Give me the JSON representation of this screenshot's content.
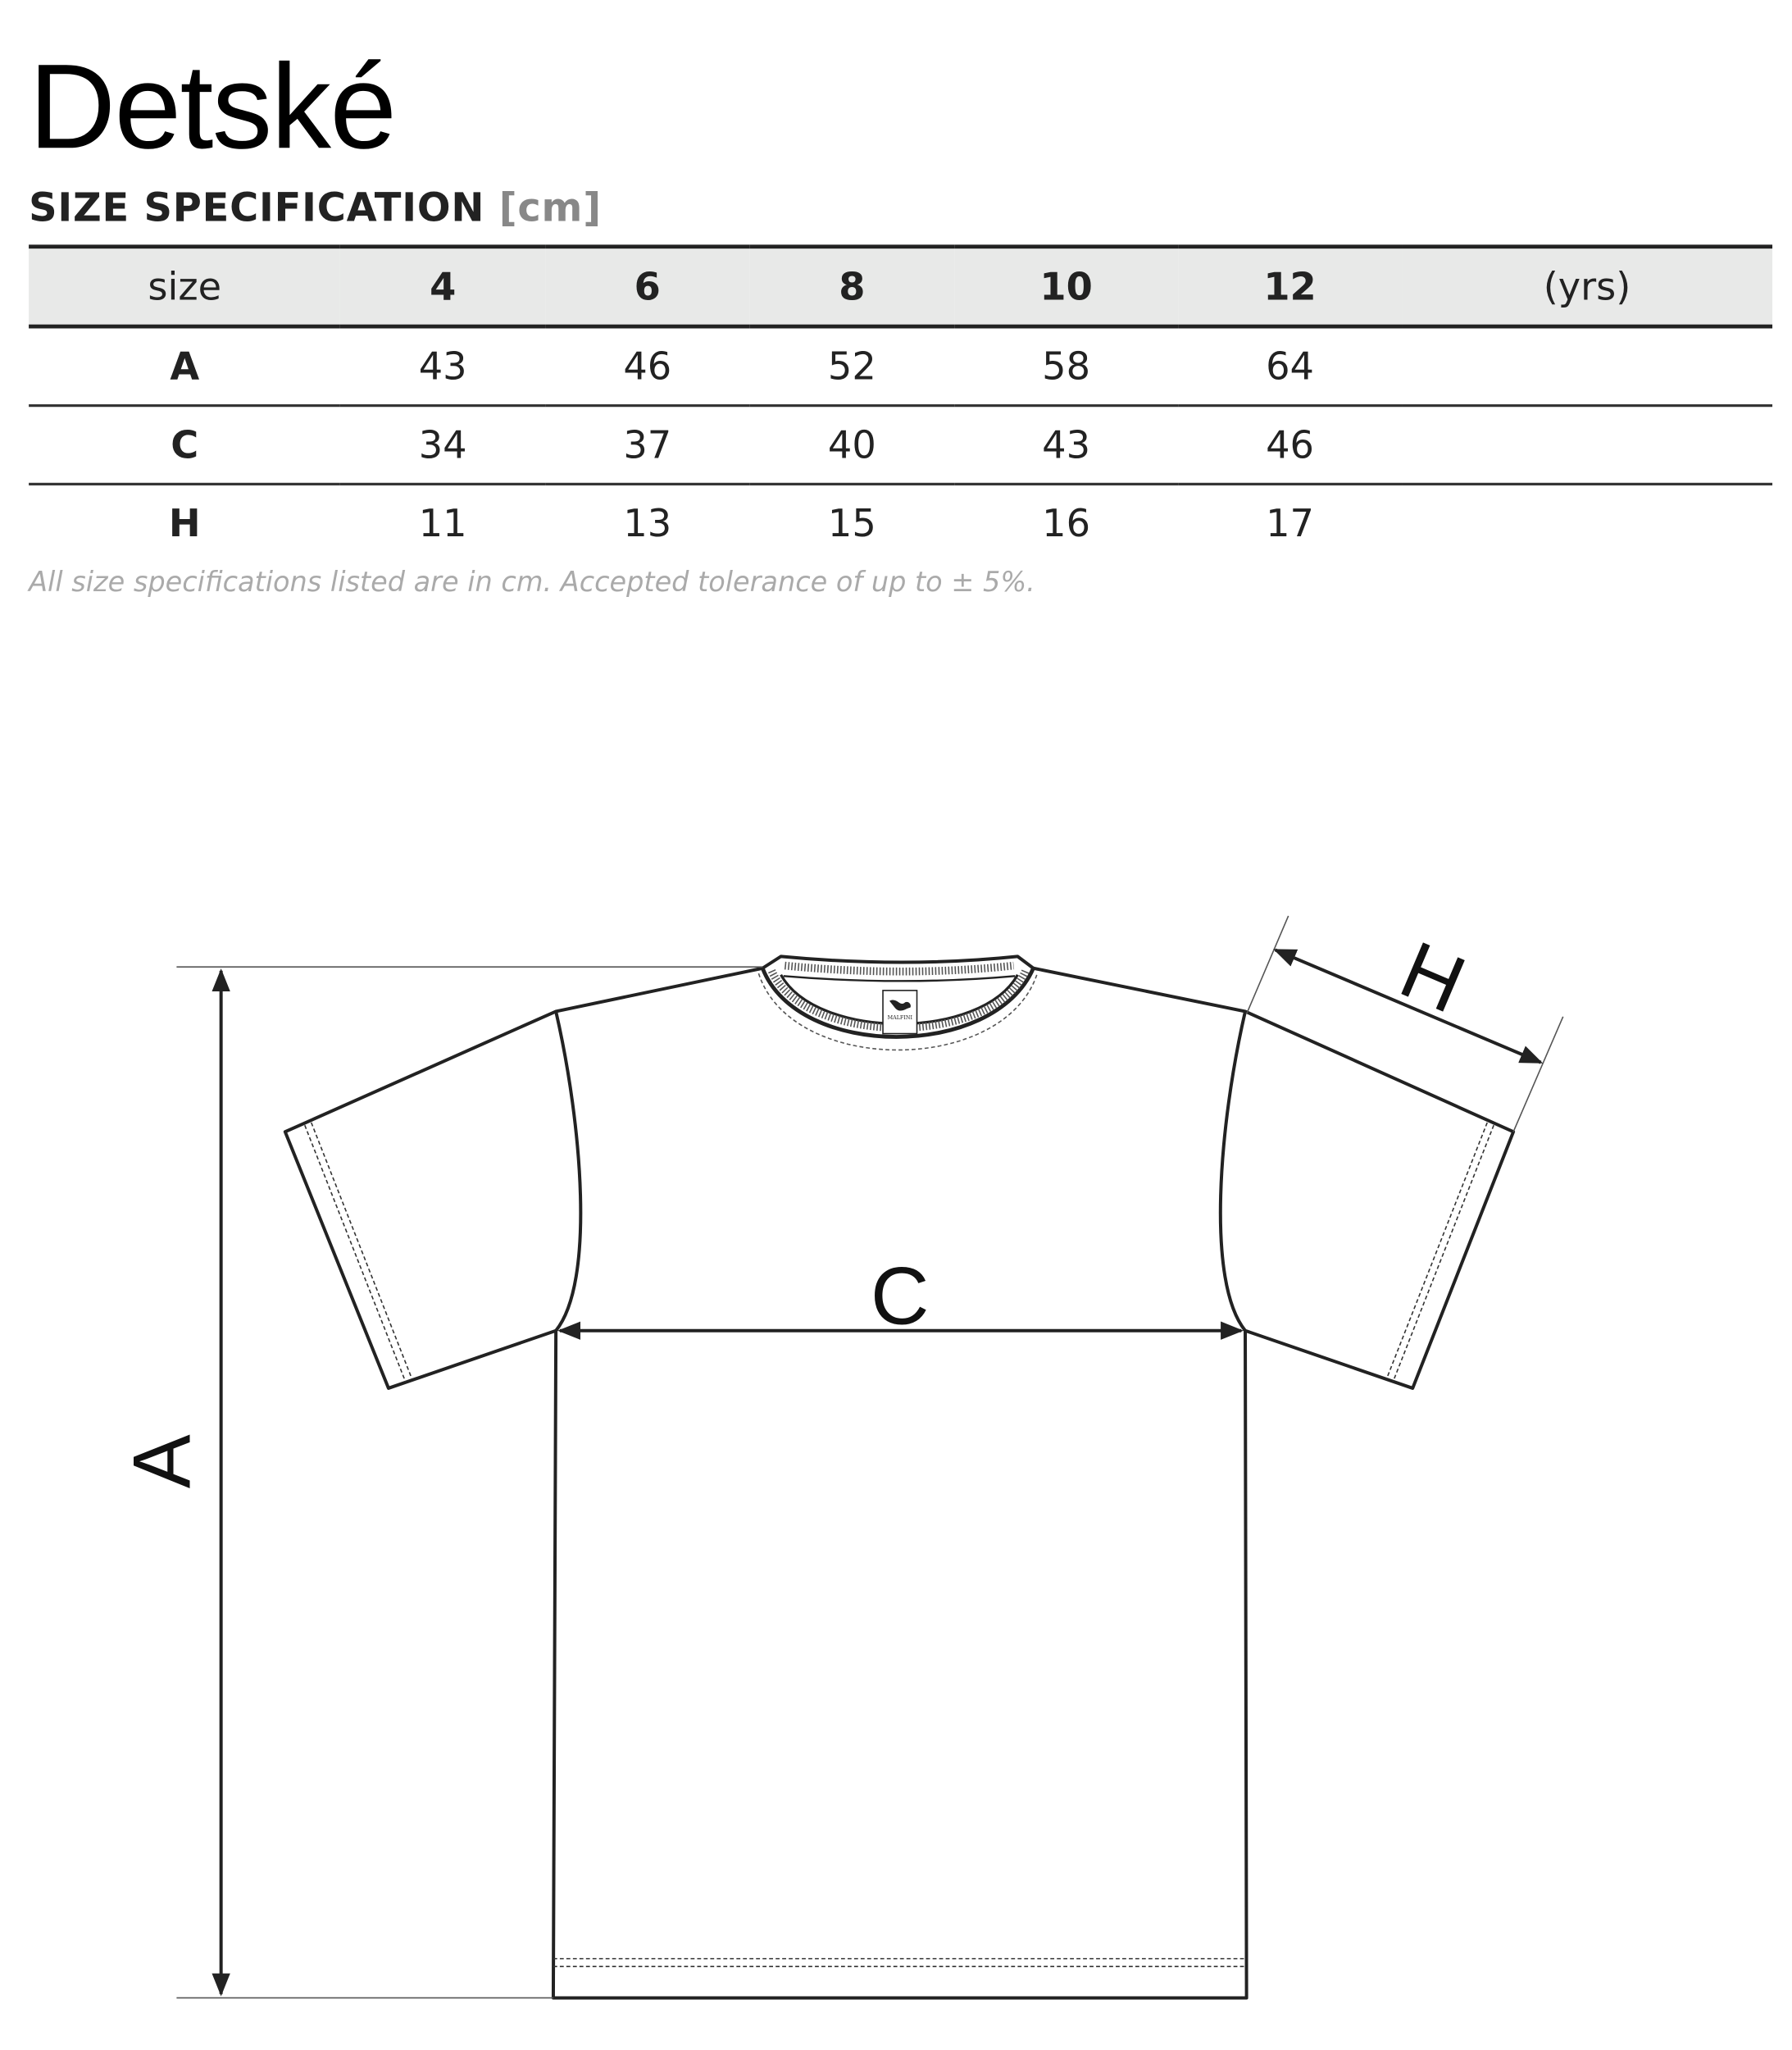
{
  "title": "Detské",
  "subtitle": {
    "text": "SIZE SPECIFICATION",
    "unit": "[cm]"
  },
  "table": {
    "header": {
      "label": "size",
      "sizes": [
        "4",
        "6",
        "8",
        "10",
        "12"
      ],
      "unit": "(yrs)"
    },
    "rows": [
      {
        "label": "A",
        "values": [
          "43",
          "46",
          "52",
          "58",
          "64"
        ]
      },
      {
        "label": "C",
        "values": [
          "34",
          "37",
          "40",
          "43",
          "46"
        ]
      },
      {
        "label": "H",
        "values": [
          "11",
          "13",
          "15",
          "16",
          "17"
        ]
      }
    ]
  },
  "note": "All size specifications listed are in cm. Accepted tolerance of up to ± 5%.",
  "diagram": {
    "label_a": "A",
    "label_c": "C",
    "label_h": "H",
    "brand_tag": "MALFINI"
  },
  "colors": {
    "header_bg": "#e8e9e8",
    "line": "#222222",
    "note": "#aaaaaa"
  }
}
